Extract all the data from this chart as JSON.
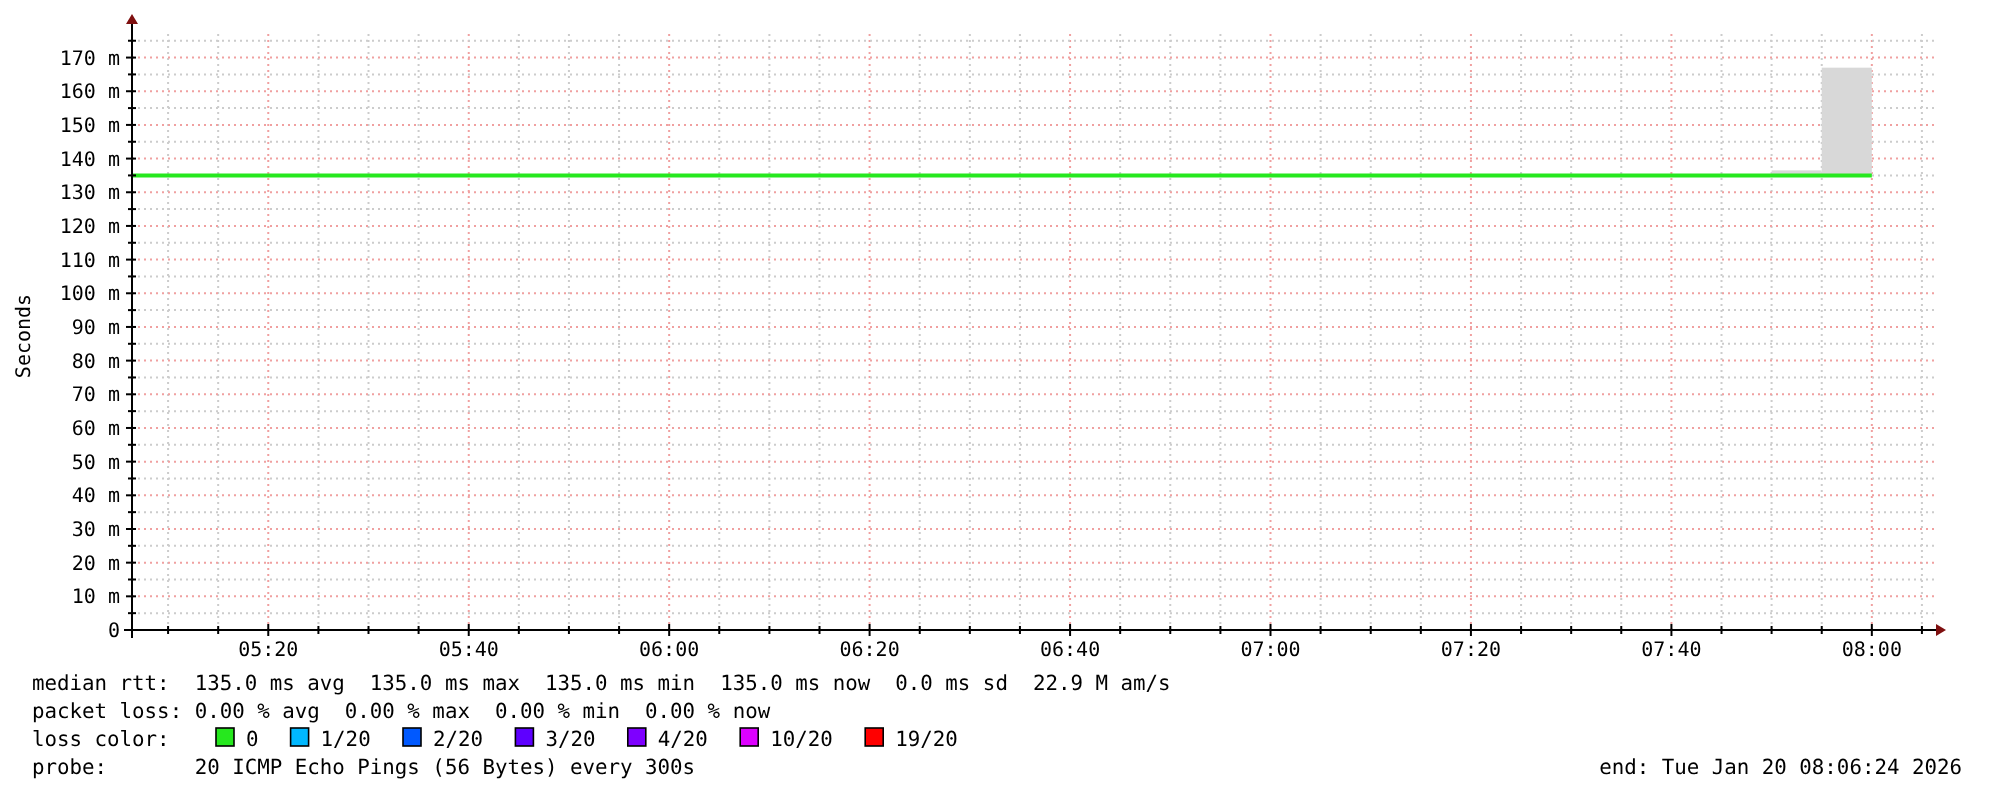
{
  "chart_data": {
    "type": "line",
    "ylabel": "Seconds",
    "xlim": [
      5.1067,
      8.1067
    ],
    "ylim": [
      0,
      177
    ],
    "xticks": [
      {
        "value": 5.1667,
        "label": null
      },
      {
        "value": 5.25,
        "label": null
      },
      {
        "value": 5.3333,
        "label": "05:20"
      },
      {
        "value": 5.4167,
        "label": null
      },
      {
        "value": 5.5,
        "label": null
      },
      {
        "value": 5.5833,
        "label": null
      },
      {
        "value": 5.6667,
        "label": "05:40"
      },
      {
        "value": 5.75,
        "label": null
      },
      {
        "value": 5.8333,
        "label": null
      },
      {
        "value": 5.9167,
        "label": null
      },
      {
        "value": 6,
        "label": "06:00"
      },
      {
        "value": 6.0833,
        "label": null
      },
      {
        "value": 6.1667,
        "label": null
      },
      {
        "value": 6.25,
        "label": null
      },
      {
        "value": 6.3333,
        "label": "06:20"
      },
      {
        "value": 6.4167,
        "label": null
      },
      {
        "value": 6.5,
        "label": null
      },
      {
        "value": 6.5833,
        "label": null
      },
      {
        "value": 6.6667,
        "label": "06:40"
      },
      {
        "value": 6.75,
        "label": null
      },
      {
        "value": 6.8333,
        "label": null
      },
      {
        "value": 6.9167,
        "label": null
      },
      {
        "value": 7,
        "label": "07:00"
      },
      {
        "value": 7.0833,
        "label": null
      },
      {
        "value": 7.1667,
        "label": null
      },
      {
        "value": 7.25,
        "label": null
      },
      {
        "value": 7.3333,
        "label": "07:20"
      },
      {
        "value": 7.4167,
        "label": null
      },
      {
        "value": 7.5,
        "label": null
      },
      {
        "value": 7.5833,
        "label": null
      },
      {
        "value": 7.6667,
        "label": "07:40"
      },
      {
        "value": 7.75,
        "label": null
      },
      {
        "value": 7.8333,
        "label": null
      },
      {
        "value": 7.9167,
        "label": null
      },
      {
        "value": 8,
        "label": "08:00"
      },
      {
        "value": 8.0833,
        "label": null
      }
    ],
    "yticks": [
      0,
      {
        "value": 5,
        "label": null
      },
      {
        "value": 10,
        "label": "10 m"
      },
      {
        "value": 15,
        "label": null
      },
      {
        "value": 20,
        "label": "20 m"
      },
      {
        "value": 25,
        "label": null
      },
      {
        "value": 30,
        "label": "30 m"
      },
      {
        "value": 35,
        "label": null
      },
      {
        "value": 40,
        "label": "40 m"
      },
      {
        "value": 45,
        "label": null
      },
      {
        "value": 50,
        "label": "50 m"
      },
      {
        "value": 55,
        "label": null
      },
      {
        "value": 60,
        "label": "60 m"
      },
      {
        "value": 65,
        "label": null
      },
      {
        "value": 70,
        "label": "70 m"
      },
      {
        "value": 75,
        "label": null
      },
      {
        "value": 80,
        "label": "80 m"
      },
      {
        "value": 85,
        "label": null
      },
      {
        "value": 90,
        "label": "90 m"
      },
      {
        "value": 95,
        "label": null
      },
      {
        "value": 100,
        "label": "100 m"
      },
      {
        "value": 105,
        "label": null
      },
      {
        "value": 110,
        "label": "110 m"
      },
      {
        "value": 115,
        "label": null
      },
      {
        "value": 120,
        "label": "120 m"
      },
      {
        "value": 125,
        "label": null
      },
      {
        "value": 130,
        "label": "130 m"
      },
      {
        "value": 135,
        "label": null
      },
      {
        "value": 140,
        "label": "140 m"
      },
      {
        "value": 145,
        "label": null
      },
      {
        "value": 150,
        "label": "150 m"
      },
      {
        "value": 155,
        "label": null
      },
      {
        "value": 160,
        "label": "160 m"
      },
      {
        "value": 165,
        "label": null
      },
      {
        "value": 170,
        "label": "170 m"
      },
      {
        "value": 175,
        "label": null
      }
    ],
    "grid": true,
    "legend": "bottom",
    "legend_title": "loss color:",
    "series": [
      {
        "type": "bar",
        "color": "#d8d8d8",
        "x": [
          7.875,
          7.9583
        ],
        "base": [
          135,
          135
        ],
        "values": [
          1.5,
          32
        ]
      },
      {
        "name": "0",
        "color": "#26e81e",
        "x": [
          5.1067,
          8
        ],
        "values": [
          135,
          135
        ]
      },
      {
        "name": "1/20",
        "color": "#00b8ff"
      },
      {
        "name": "2/20",
        "color": "#0059ff"
      },
      {
        "name": "3/20",
        "color": "#5e00ff"
      },
      {
        "name": "4/20",
        "color": "#7e00ff"
      },
      {
        "name": "10/20",
        "color": "#dd00ff"
      },
      {
        "name": "19/20",
        "color": "#ff0000"
      }
    ],
    "annotations": [
      "median rtt:  135.0 ms avg  135.0 ms max  135.0 ms min  135.0 ms now  0.0 ms sd  22.9 M am/s",
      "packet loss: 0.00 % avg  0.00 % max  0.00 % min  0.00 % now",
      "probe:       20 ICMP Echo Pings (56 Bytes) every 300s",
      "end: Tue Jan 20 08:06:24 2026"
    ]
  }
}
